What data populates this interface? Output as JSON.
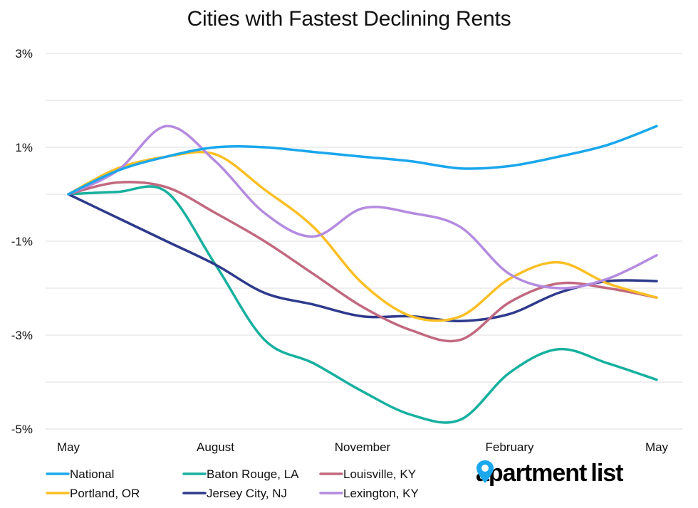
{
  "chart_data": {
    "type": "line",
    "title": "Cities with Fastest Declining Rents",
    "xlabel": "",
    "ylabel": "",
    "x_ticks": [
      "May",
      "August",
      "November",
      "February",
      "May"
    ],
    "x_tick_index": [
      0,
      3,
      6,
      9,
      12
    ],
    "y_ticks": [
      "3%",
      "1%",
      "-1%",
      "-3%",
      "-5%"
    ],
    "y_tick_values": [
      3,
      1,
      -1,
      -3,
      -5
    ],
    "ylim": [
      -5,
      3
    ],
    "x_count": 13,
    "grid": "horizontal",
    "legend_position": "bottom",
    "series": [
      {
        "name": "National",
        "color": "#1aa7ec",
        "values": [
          0,
          0.5,
          0.8,
          1.0,
          1.0,
          0.9,
          0.8,
          0.7,
          0.55,
          0.6,
          0.8,
          1.05,
          1.45
        ]
      },
      {
        "name": "Portland, OR",
        "color": "#fbbf24",
        "values": [
          0,
          0.55,
          0.8,
          0.85,
          0.1,
          -0.7,
          -1.9,
          -2.6,
          -2.6,
          -1.8,
          -1.45,
          -1.9,
          -2.2
        ]
      },
      {
        "name": "Baton Rouge, LA",
        "color": "#17b09f",
        "values": [
          0,
          0.05,
          0.05,
          -1.5,
          -3.1,
          -3.6,
          -4.2,
          -4.7,
          -4.8,
          -3.8,
          -3.3,
          -3.6,
          -3.95
        ]
      },
      {
        "name": "Jersey City, NJ",
        "color": "#2e3a8c",
        "values": [
          0,
          -0.5,
          -1.0,
          -1.5,
          -2.1,
          -2.35,
          -2.6,
          -2.6,
          -2.7,
          -2.55,
          -2.1,
          -1.85,
          -1.85
        ]
      },
      {
        "name": "Louisville, KY",
        "color": "#c1687f",
        "values": [
          0,
          0.25,
          0.15,
          -0.4,
          -1.0,
          -1.7,
          -2.4,
          -2.9,
          -3.1,
          -2.3,
          -1.9,
          -2.0,
          -2.2
        ]
      },
      {
        "name": "Lexington, KY",
        "color": "#b48be0",
        "values": [
          0,
          0.5,
          1.45,
          0.7,
          -0.4,
          -0.9,
          -0.3,
          -0.4,
          -0.7,
          -1.7,
          -2.0,
          -1.8,
          -1.3
        ]
      }
    ]
  },
  "logo": {
    "text_left": "apartment",
    "text_right": "list",
    "pin_color": "#1aa7ec"
  }
}
